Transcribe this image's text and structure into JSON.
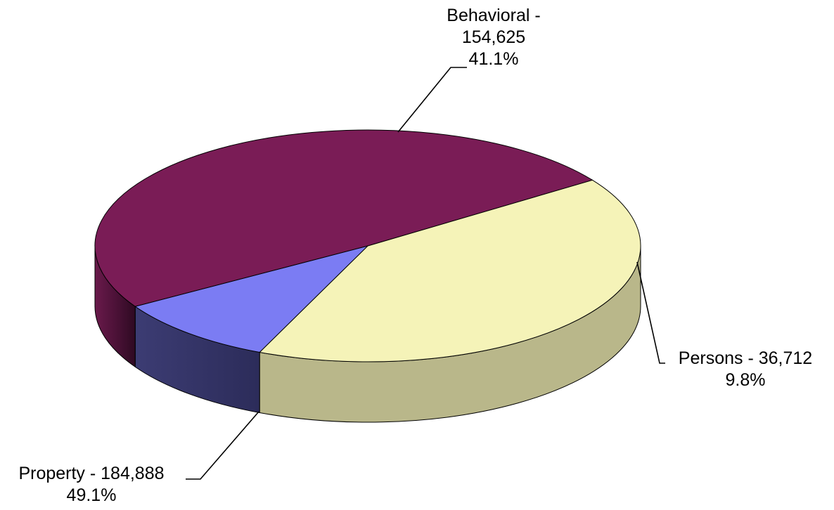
{
  "chart_data": {
    "type": "pie",
    "style": "3d",
    "title": "",
    "categories": [
      "Behavioral",
      "Persons",
      "Property"
    ],
    "values": [
      154625,
      36712,
      184888
    ],
    "percentages": [
      "41.1%",
      "9.8%",
      "49.1%"
    ],
    "slices": [
      {
        "name": "Behavioral",
        "value": 154625,
        "percent": 41.1,
        "label_lines": [
          "Behavioral -",
          "154,625",
          "41.1%"
        ],
        "color": "#f5f3b8",
        "side_color": "#b9b78a"
      },
      {
        "name": "Persons",
        "value": 36712,
        "percent": 9.8,
        "label_lines": [
          "Persons - 36,712",
          "9.8%"
        ],
        "color": "#7b7cf3",
        "side_color": "#3a3a6e"
      },
      {
        "name": "Property",
        "value": 184888,
        "percent": 49.1,
        "label_lines": [
          "Property - 184,888",
          "49.1%"
        ],
        "color": "#7a1c56",
        "side_color": "#4f1238"
      }
    ],
    "legend": "none",
    "data_labels": "outside with leader lines"
  }
}
